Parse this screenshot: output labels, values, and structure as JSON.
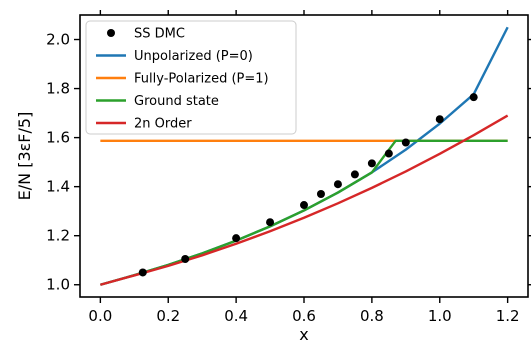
{
  "chart_data": {
    "type": "line",
    "xlabel": "x",
    "ylabel": "E/N   [3εF/5]",
    "xlim": [
      -0.06,
      1.26
    ],
    "ylim": [
      0.95,
      2.1
    ],
    "xticks": [
      0.0,
      0.2,
      0.4,
      0.6,
      0.8,
      1.0,
      1.2
    ],
    "xtick_labels": [
      "0.0",
      "0.2",
      "0.4",
      "0.6",
      "0.8",
      "1.0",
      "1.2"
    ],
    "yticks": [
      1.0,
      1.2,
      1.4,
      1.6,
      1.8,
      2.0
    ],
    "ytick_labels": [
      "1.0",
      "1.2",
      "1.4",
      "1.6",
      "1.8",
      "2.0"
    ],
    "grid": false,
    "legend_position": "top-left",
    "series": [
      {
        "name": "SS DMC",
        "kind": "scatter",
        "color": "#000000",
        "x": [
          0.125,
          0.25,
          0.4,
          0.5,
          0.6,
          0.65,
          0.7,
          0.75,
          0.8,
          0.85,
          0.9,
          1.0,
          1.1
        ],
        "y": [
          1.05,
          1.105,
          1.19,
          1.255,
          1.325,
          1.37,
          1.41,
          1.45,
          1.495,
          1.535,
          1.58,
          1.675,
          1.765
        ]
      },
      {
        "name": "Unpolarized (P=0)",
        "kind": "line",
        "color": "#1f77b4",
        "x": [
          0.0,
          0.1,
          0.2,
          0.3,
          0.4,
          0.5,
          0.6,
          0.7,
          0.8,
          0.9,
          1.0,
          1.1,
          1.2
        ],
        "y": [
          1.0,
          1.039,
          1.081,
          1.128,
          1.18,
          1.238,
          1.303,
          1.376,
          1.458,
          1.551,
          1.657,
          1.777,
          2.05
        ]
      },
      {
        "name": "Fully-Polarized (P=1)",
        "kind": "line",
        "color": "#ff7f0e",
        "x": [
          0.0,
          1.2
        ],
        "y": [
          1.587,
          1.587
        ]
      },
      {
        "name": "Ground state",
        "kind": "line",
        "color": "#2ca02c",
        "x": [
          0.0,
          0.1,
          0.2,
          0.3,
          0.4,
          0.5,
          0.6,
          0.7,
          0.8,
          0.87,
          1.0,
          1.2
        ],
        "y": [
          1.0,
          1.039,
          1.081,
          1.128,
          1.18,
          1.238,
          1.303,
          1.376,
          1.458,
          1.587,
          1.587,
          1.587
        ]
      },
      {
        "name": "2n Order",
        "kind": "line",
        "color": "#d62728",
        "x": [
          0.0,
          0.1,
          0.2,
          0.3,
          0.4,
          0.5,
          0.6,
          0.7,
          0.8,
          0.9,
          1.0,
          1.1,
          1.2
        ],
        "y": [
          1.0,
          1.038,
          1.077,
          1.12,
          1.167,
          1.218,
          1.273,
          1.332,
          1.395,
          1.462,
          1.534,
          1.61,
          1.69
        ]
      }
    ]
  }
}
